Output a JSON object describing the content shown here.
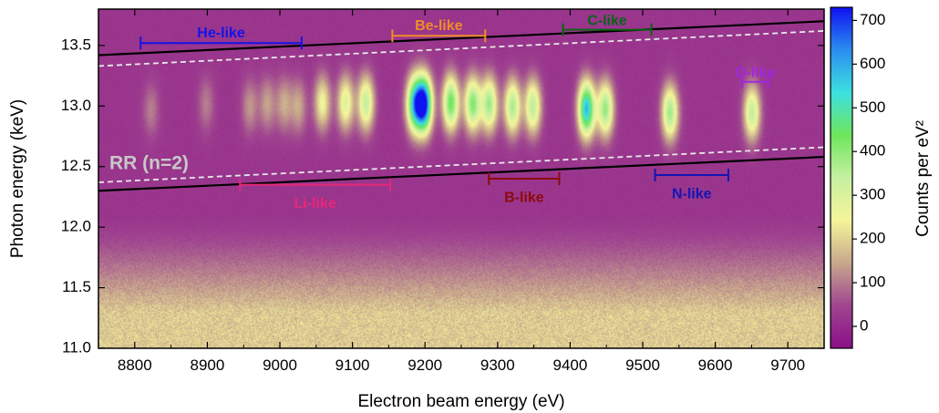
{
  "chart_data": {
    "type": "heatmap",
    "xlabel": "Electron beam energy (eV)",
    "ylabel": "Photon energy (keV)",
    "colorbar_label": "Counts per eV²",
    "xlim": [
      8750,
      9750
    ],
    "ylim": [
      11.0,
      13.8
    ],
    "xticks": [
      "8800",
      "8900",
      "9000",
      "9100",
      "9200",
      "9300",
      "9400",
      "9500",
      "9600",
      "9700"
    ],
    "yticks": [
      "11.0",
      "11.5",
      "12.0",
      "12.5",
      "13.0",
      "13.5"
    ],
    "colorbar_ticks": [
      "0",
      "100",
      "200",
      "300",
      "400",
      "500",
      "600",
      "700"
    ],
    "clim": [
      -50,
      730
    ],
    "colormap": [
      "#8a0f86",
      "#a04590",
      "#c7a78c",
      "#f5f59a",
      "#c6f0a0",
      "#6ee65c",
      "#3de0e0",
      "#2a8ef0",
      "#1010f0"
    ],
    "background_level": 20,
    "low_photon_glow": {
      "photon_energy_start": 12.1,
      "photon_energy_peak": 11.3,
      "peak_counts": 190
    },
    "lines": [
      {
        "name": "upper-boundary",
        "style": "solid",
        "color": "#000000",
        "points": [
          [
            8750,
            13.42
          ],
          [
            9750,
            13.7
          ]
        ]
      },
      {
        "name": "lower-boundary",
        "style": "solid",
        "color": "#000000",
        "points": [
          [
            8750,
            12.3
          ],
          [
            9750,
            12.58
          ]
        ]
      },
      {
        "name": "upper-dashed",
        "style": "dashed",
        "color": "#e8e8e8",
        "points": [
          [
            8750,
            13.33
          ],
          [
            9750,
            13.62
          ]
        ]
      },
      {
        "name": "lower-dashed",
        "style": "dashed",
        "color": "#e8e8e8",
        "points": [
          [
            8750,
            12.37
          ],
          [
            9750,
            12.66
          ]
        ]
      }
    ],
    "peaks": [
      {
        "x": 8822,
        "y": 12.97,
        "counts": 85
      },
      {
        "x": 8898,
        "y": 13.02,
        "counts": 85
      },
      {
        "x": 8958,
        "y": 13.0,
        "counts": 110
      },
      {
        "x": 8982,
        "y": 13.02,
        "counts": 120
      },
      {
        "x": 9005,
        "y": 13.02,
        "counts": 130
      },
      {
        "x": 9025,
        "y": 13.0,
        "counts": 130
      },
      {
        "x": 9058,
        "y": 13.03,
        "counts": 230
      },
      {
        "x": 9090,
        "y": 13.03,
        "counts": 270
      },
      {
        "x": 9118,
        "y": 13.03,
        "counts": 320
      },
      {
        "x": 9185,
        "y": 13.02,
        "counts": 480
      },
      {
        "x": 9198,
        "y": 13.02,
        "counts": 700
      },
      {
        "x": 9235,
        "y": 13.03,
        "counts": 420
      },
      {
        "x": 9265,
        "y": 13.02,
        "counts": 390
      },
      {
        "x": 9288,
        "y": 13.02,
        "counts": 360
      },
      {
        "x": 9320,
        "y": 13.0,
        "counts": 350
      },
      {
        "x": 9348,
        "y": 13.0,
        "counts": 330
      },
      {
        "x": 9422,
        "y": 12.98,
        "counts": 560
      },
      {
        "x": 9448,
        "y": 12.98,
        "counts": 370
      },
      {
        "x": 9537,
        "y": 12.95,
        "counts": 360
      },
      {
        "x": 9650,
        "y": 12.95,
        "counts": 320
      }
    ],
    "annotations": [
      {
        "label": "He-like",
        "color": "#1414e6",
        "x1": 8808,
        "x2": 9030,
        "y": 13.52,
        "label_y": 13.6
      },
      {
        "label": "Be-like",
        "color": "#f08c28",
        "x1": 9155,
        "x2": 9283,
        "y": 13.58,
        "label_y": 13.66
      },
      {
        "label": "C-like",
        "color": "#0a6414",
        "x1": 9390,
        "x2": 9512,
        "y": 13.63,
        "label_y": 13.7
      },
      {
        "label": "O-like",
        "color": "#a028dc",
        "x1": 9637,
        "x2": 9673,
        "y": 13.2,
        "label_y": 13.27
      },
      {
        "label": "Li-like",
        "color": "#e6287a",
        "x1": 8945,
        "x2": 9152,
        "y": 12.35,
        "label_y": 12.19
      },
      {
        "label": "B-like",
        "color": "#8c0a0a",
        "x1": 9288,
        "x2": 9385,
        "y": 12.4,
        "label_y": 12.24
      },
      {
        "label": "N-like",
        "color": "#1414b4",
        "x1": 9517,
        "x2": 9618,
        "y": 12.43,
        "label_y": 12.27
      }
    ],
    "text_annotations": [
      {
        "label": "RR (n=2)",
        "color": "#c8c8c8",
        "x": 8760,
        "y": 12.52
      }
    ]
  }
}
